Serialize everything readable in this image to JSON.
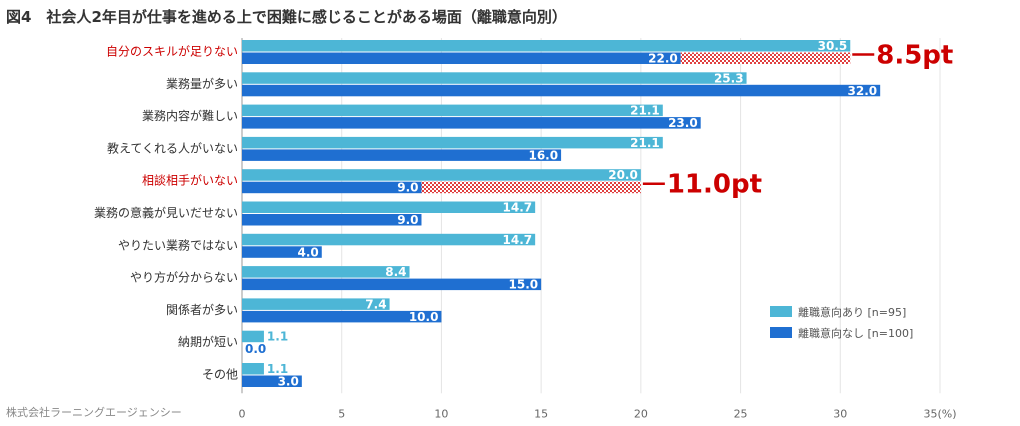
{
  "title": "図4　社会人2年目が仕事を進める上で困難に感じることがある場面（離職意向別）",
  "source": "株式会社ラーニングエージェンシー",
  "chart_data": {
    "type": "bar",
    "orientation": "horizontal",
    "title": "図4　社会人2年目が仕事を進める上で困難に感じることがある場面（離職意向別）",
    "categories": [
      "自分のスキルが足りない",
      "業務量が多い",
      "業務内容が難しい",
      "教えてくれる人がいない",
      "相談相手がいない",
      "業務の意義が見いだせない",
      "やりたい業務ではない",
      "やり方が分からない",
      "関係者が多い",
      "納期が短い",
      "その他"
    ],
    "highlighted_categories": [
      "自分のスキルが足りない",
      "相談相手がいない"
    ],
    "series": [
      {
        "name": "離職意向あり [n=95]",
        "color": "#4db6d6",
        "values": [
          30.5,
          25.3,
          21.1,
          21.1,
          20.0,
          14.7,
          14.7,
          8.4,
          7.4,
          1.1,
          1.1
        ]
      },
      {
        "name": "離職意向なし [n=100]",
        "color": "#1f6fd1",
        "values": [
          22.0,
          32.0,
          23.0,
          16.0,
          9.0,
          9.0,
          4.0,
          15.0,
          10.0,
          0.0,
          3.0
        ]
      }
    ],
    "annotations": [
      {
        "category": "自分のスキルが足りない",
        "text": "8.5pt"
      },
      {
        "category": "相談相手がいない",
        "text": "11.0pt"
      }
    ],
    "xlim": [
      0,
      35
    ],
    "xticks": [
      "0",
      "5",
      "10",
      "15",
      "20",
      "25",
      "30",
      "35(%)"
    ],
    "legend_position": "bottom-right",
    "grid": true
  }
}
